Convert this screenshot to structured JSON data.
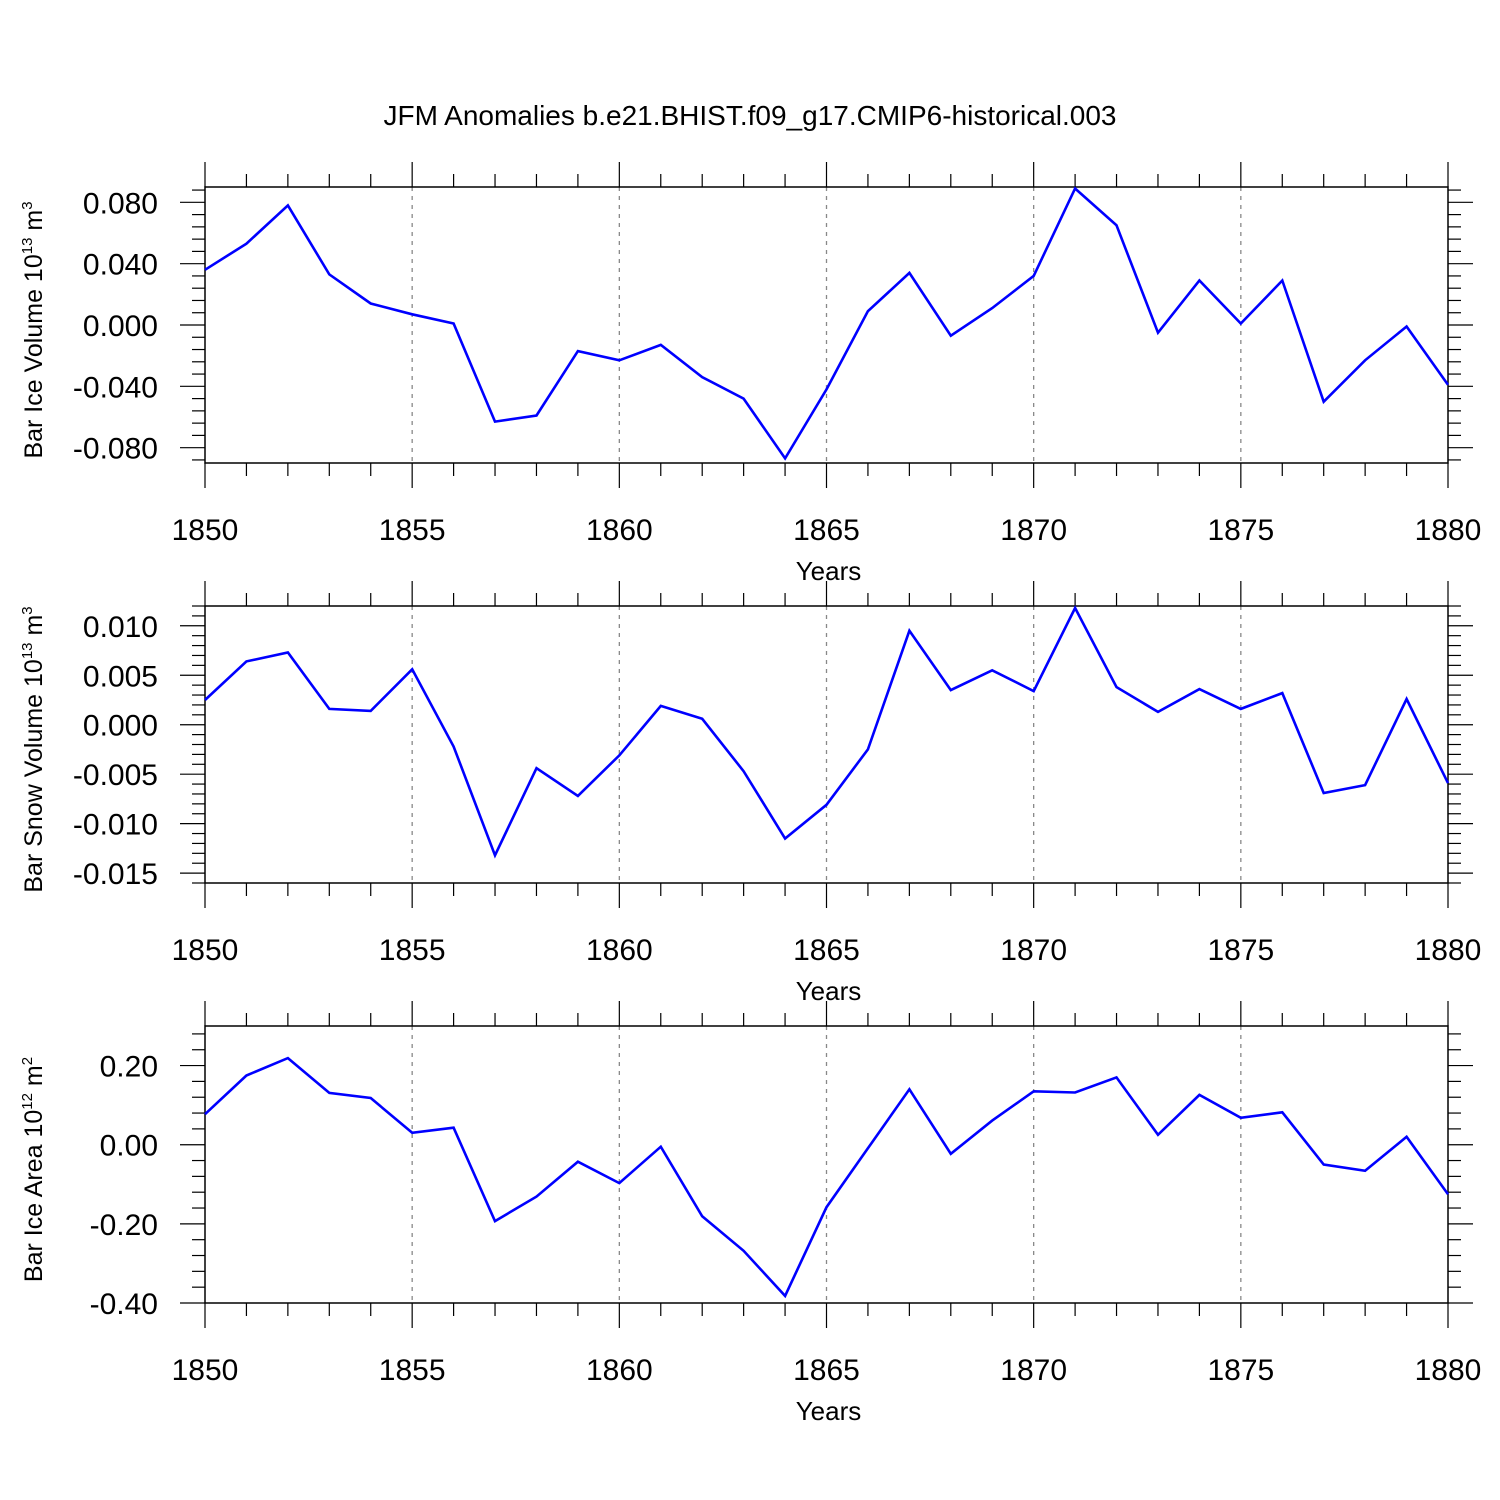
{
  "title": "JFM Anomalies b.e21.BHIST.f09_g17.CMIP6-historical.003",
  "series_color": "#0000ff",
  "chart_data": [
    {
      "type": "line",
      "name": "ice-volume",
      "ylabel": {
        "text": "Bar Ice Volume 10",
        "exp": "13",
        "unit": " m",
        "unit_exp": "3"
      },
      "xlabel": "Years",
      "xlim": [
        1850,
        1880
      ],
      "ylim": [
        -0.09,
        0.09
      ],
      "xticks": [
        1850,
        1855,
        1860,
        1865,
        1870,
        1875,
        1880
      ],
      "yticks": [
        -0.08,
        -0.04,
        0.0,
        0.04,
        0.08
      ],
      "ytick_labels": [
        "-0.080",
        "-0.040",
        "0.000",
        "0.040",
        "0.080"
      ],
      "grid": "vertical dashed at major x ticks",
      "x": [
        1850,
        1851,
        1852,
        1853,
        1854,
        1855,
        1856,
        1857,
        1858,
        1859,
        1860,
        1861,
        1862,
        1863,
        1864,
        1865,
        1866,
        1867,
        1868,
        1869,
        1870,
        1871,
        1872,
        1873,
        1874,
        1875,
        1876,
        1877,
        1878,
        1879,
        1880
      ],
      "y": [
        0.036,
        0.053,
        0.078,
        0.033,
        0.014,
        0.007,
        0.001,
        -0.063,
        -0.059,
        -0.017,
        -0.023,
        -0.013,
        -0.034,
        -0.048,
        -0.087,
        -0.042,
        0.009,
        0.034,
        -0.007,
        0.011,
        0.032,
        0.089,
        0.065,
        -0.005,
        0.029,
        0.001,
        0.029,
        -0.05,
        -0.023,
        -0.001,
        -0.039
      ]
    },
    {
      "type": "line",
      "name": "snow-volume",
      "ylabel": {
        "text": "Bar Snow Volume 10",
        "exp": "13",
        "unit": " m",
        "unit_exp": "3"
      },
      "xlabel": "Years",
      "xlim": [
        1850,
        1880
      ],
      "ylim": [
        -0.016,
        0.012
      ],
      "xticks": [
        1850,
        1855,
        1860,
        1865,
        1870,
        1875,
        1880
      ],
      "yticks": [
        -0.015,
        -0.01,
        -0.005,
        0.0,
        0.005,
        0.01
      ],
      "ytick_labels": [
        "-0.015",
        "-0.010",
        "-0.005",
        "0.000",
        "0.005",
        "0.010"
      ],
      "grid": "vertical dashed at major x ticks",
      "x": [
        1850,
        1851,
        1852,
        1853,
        1854,
        1855,
        1856,
        1857,
        1858,
        1859,
        1860,
        1861,
        1862,
        1863,
        1864,
        1865,
        1866,
        1867,
        1868,
        1869,
        1870,
        1871,
        1872,
        1873,
        1874,
        1875,
        1876,
        1877,
        1878,
        1879,
        1880
      ],
      "y": [
        0.0025,
        0.0064,
        0.0073,
        0.0016,
        0.0014,
        0.0056,
        -0.0022,
        -0.0132,
        -0.0044,
        -0.0072,
        -0.0031,
        0.0019,
        0.0006,
        -0.0047,
        -0.0115,
        -0.0081,
        -0.0025,
        0.0095,
        0.0035,
        0.0055,
        0.0034,
        0.0118,
        0.0038,
        0.0013,
        0.0036,
        0.0016,
        0.0032,
        -0.0069,
        -0.0061,
        0.0026,
        -0.0059
      ]
    },
    {
      "type": "line",
      "name": "ice-area",
      "ylabel": {
        "text": "Bar Ice Area 10",
        "exp": "12",
        "unit": " m",
        "unit_exp": "2"
      },
      "xlabel": "Years",
      "xlim": [
        1850,
        1880
      ],
      "ylim": [
        -0.4,
        0.3
      ],
      "xticks": [
        1850,
        1855,
        1860,
        1865,
        1870,
        1875,
        1880
      ],
      "yticks": [
        -0.4,
        -0.2,
        0.0,
        0.2
      ],
      "ytick_labels": [
        "-0.40",
        "-0.20",
        "0.00",
        "0.20"
      ],
      "grid": "vertical dashed at major x ticks",
      "x": [
        1850,
        1851,
        1852,
        1853,
        1854,
        1855,
        1856,
        1857,
        1858,
        1859,
        1860,
        1861,
        1862,
        1863,
        1864,
        1865,
        1866,
        1867,
        1868,
        1869,
        1870,
        1871,
        1872,
        1873,
        1874,
        1875,
        1876,
        1877,
        1878,
        1879,
        1880
      ],
      "y": [
        0.077,
        0.175,
        0.219,
        0.131,
        0.118,
        0.03,
        0.043,
        -0.193,
        -0.131,
        -0.043,
        -0.097,
        -0.005,
        -0.181,
        -0.268,
        -0.382,
        -0.158,
        -0.009,
        0.14,
        -0.023,
        0.061,
        0.135,
        0.132,
        0.17,
        0.025,
        0.126,
        0.068,
        0.082,
        -0.05,
        -0.066,
        0.02,
        -0.125
      ]
    }
  ]
}
